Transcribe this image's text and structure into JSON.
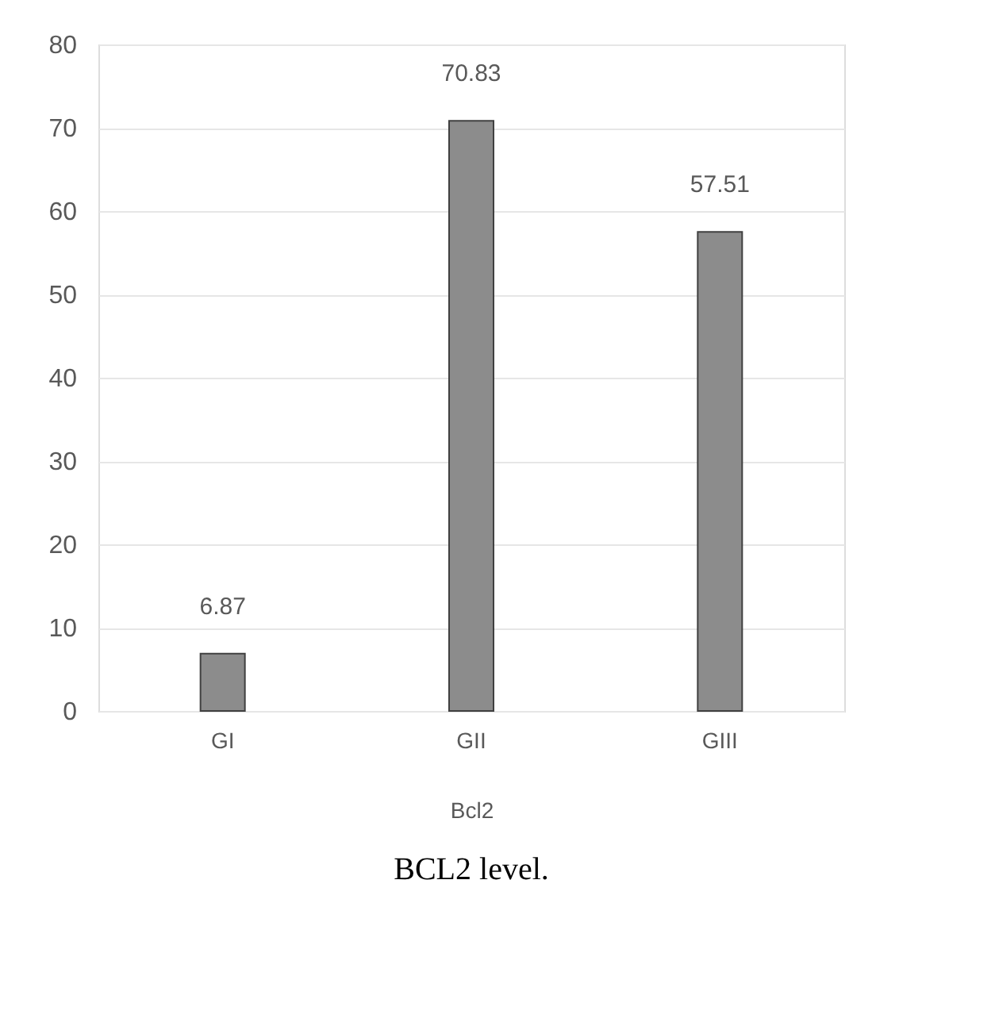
{
  "chart_data": {
    "type": "bar",
    "xlabel": "Bcl2",
    "categories": [
      "GI",
      "GII",
      "GIII"
    ],
    "values": [
      6.87,
      70.83,
      57.51
    ],
    "color": "#8c8c8c",
    "ylim": [
      0,
      80
    ],
    "yticks": [
      0,
      10,
      20,
      30,
      40,
      50,
      60,
      70,
      80
    ],
    "grid": "y",
    "data_labels": true,
    "annotations": [
      "BCL2 level."
    ]
  }
}
